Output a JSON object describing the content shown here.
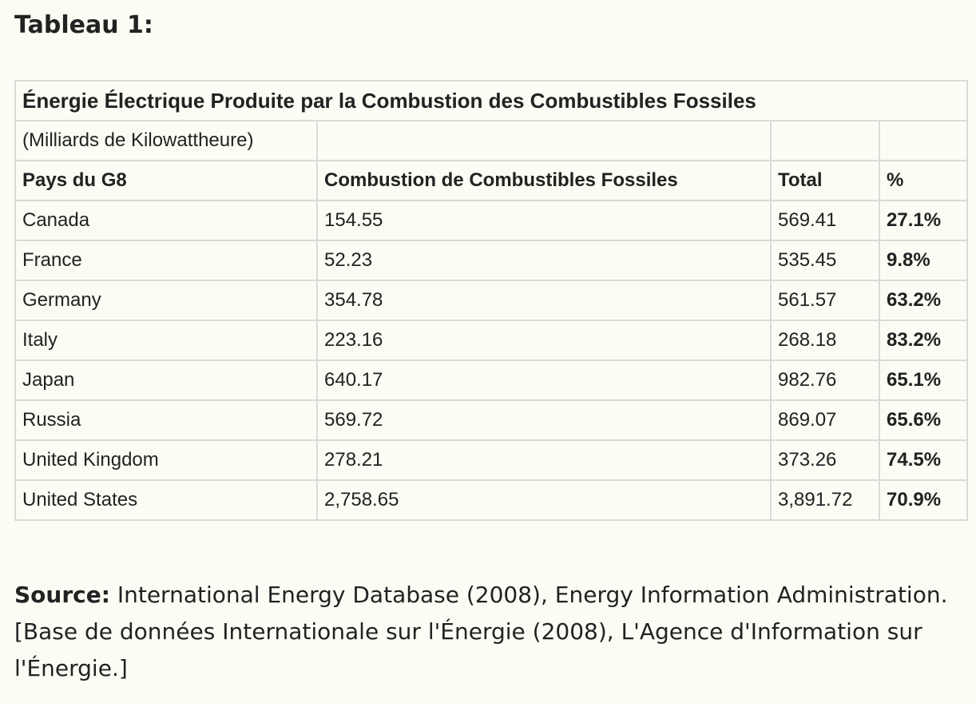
{
  "page": {
    "title": "Tableau 1:"
  },
  "table": {
    "caption": "Énergie Électrique Produite par la Combustion des Combustibles Fossiles",
    "unit": "(Milliards de Kilowattheure)",
    "headers": [
      "Pays du G8",
      "Combustion de Combustibles Fossiles",
      "Total",
      "%"
    ],
    "rows": [
      {
        "country": "Canada",
        "fossil": "154.55",
        "total": "569.41",
        "pct": "27.1%"
      },
      {
        "country": "France",
        "fossil": "52.23",
        "total": "535.45",
        "pct": "9.8%"
      },
      {
        "country": "Germany",
        "fossil": "354.78",
        "total": "561.57",
        "pct": "63.2%"
      },
      {
        "country": "Italy",
        "fossil": "223.16",
        "total": "268.18",
        "pct": "83.2%"
      },
      {
        "country": "Japan",
        "fossil": "640.17",
        "total": "982.76",
        "pct": "65.1%"
      },
      {
        "country": "Russia",
        "fossil": "569.72",
        "total": "869.07",
        "pct": "65.6%"
      },
      {
        "country": "United Kingdom",
        "fossil": "278.21",
        "total": "373.26",
        "pct": "74.5%"
      },
      {
        "country": "United States",
        "fossil": "2,758.65",
        "total": "3,891.72",
        "pct": "70.9%"
      }
    ]
  },
  "source": {
    "label": "Source:",
    "text": " International Energy Database (2008), Energy Information Administration. [Base de données Internationale sur l'Énergie (2008), L'Agence d'Information sur l'Énergie.]"
  },
  "colors": {
    "background": "#fcfcf4",
    "border": "#dadada",
    "text": "#222222"
  }
}
